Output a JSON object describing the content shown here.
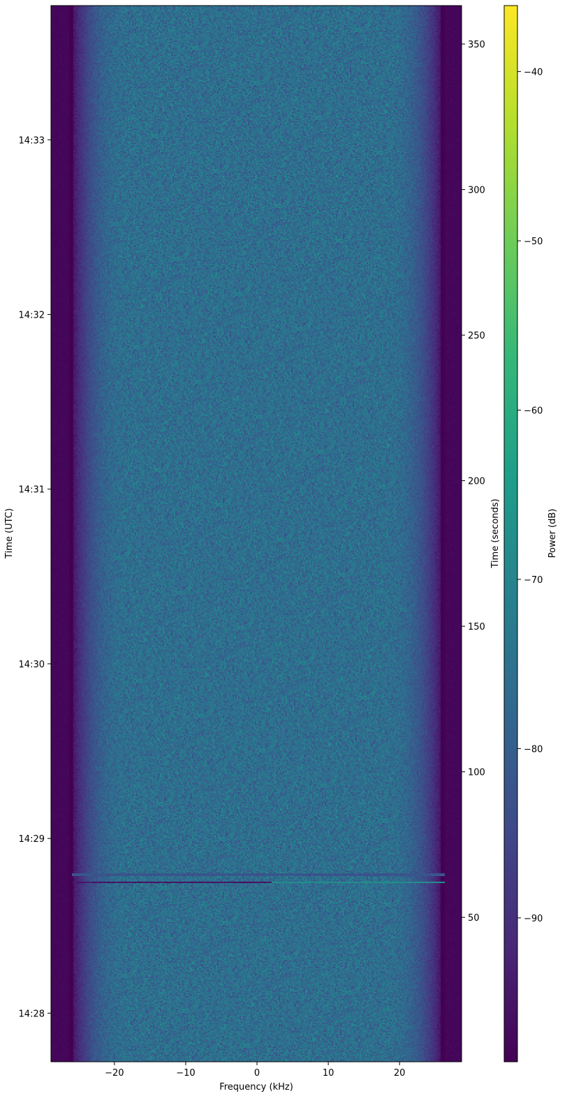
{
  "chart_data": {
    "type": "heatmap",
    "xlabel": "Frequency (kHz)",
    "ylabel_left": "Time (UTC)",
    "ylabel_right": "Time (seconds)",
    "colorbar_label": "Power (dB)",
    "colormap": "viridis",
    "xlim": [
      -28.9,
      28.7
    ],
    "ylim_seconds": [
      0.4,
      363.2
    ],
    "clim": [
      -98.5,
      -36.1
    ],
    "x_ticks": [
      -20,
      -10,
      0,
      10,
      20
    ],
    "right_y_ticks": [
      50,
      100,
      150,
      200,
      250,
      300,
      350
    ],
    "left_y_ticks": [
      {
        "label": "14:28",
        "seconds": 17.1
      },
      {
        "label": "14:29",
        "seconds": 77.1
      },
      {
        "label": "14:30",
        "seconds": 137.1
      },
      {
        "label": "14:31",
        "seconds": 197.1
      },
      {
        "label": "14:32",
        "seconds": 257.1
      },
      {
        "label": "14:33",
        "seconds": 317.1
      }
    ],
    "colorbar_ticks": [
      -40,
      -50,
      -60,
      -70,
      -80,
      -90
    ],
    "noise_floor_db": -76,
    "passband_khz": [
      -26.3,
      26.3
    ],
    "passband_taper_khz": 8,
    "out_of_band_db": -98,
    "events": [
      {
        "seconds": 62,
        "freq_khz": [
          -26,
          2
        ],
        "power_db": -95
      },
      {
        "seconds": 62,
        "freq_khz": [
          2,
          27
        ],
        "power_db": -68
      },
      {
        "seconds": 64.8,
        "freq_khz": [
          -26,
          27
        ],
        "power_db": -82
      }
    ],
    "grid": false
  }
}
